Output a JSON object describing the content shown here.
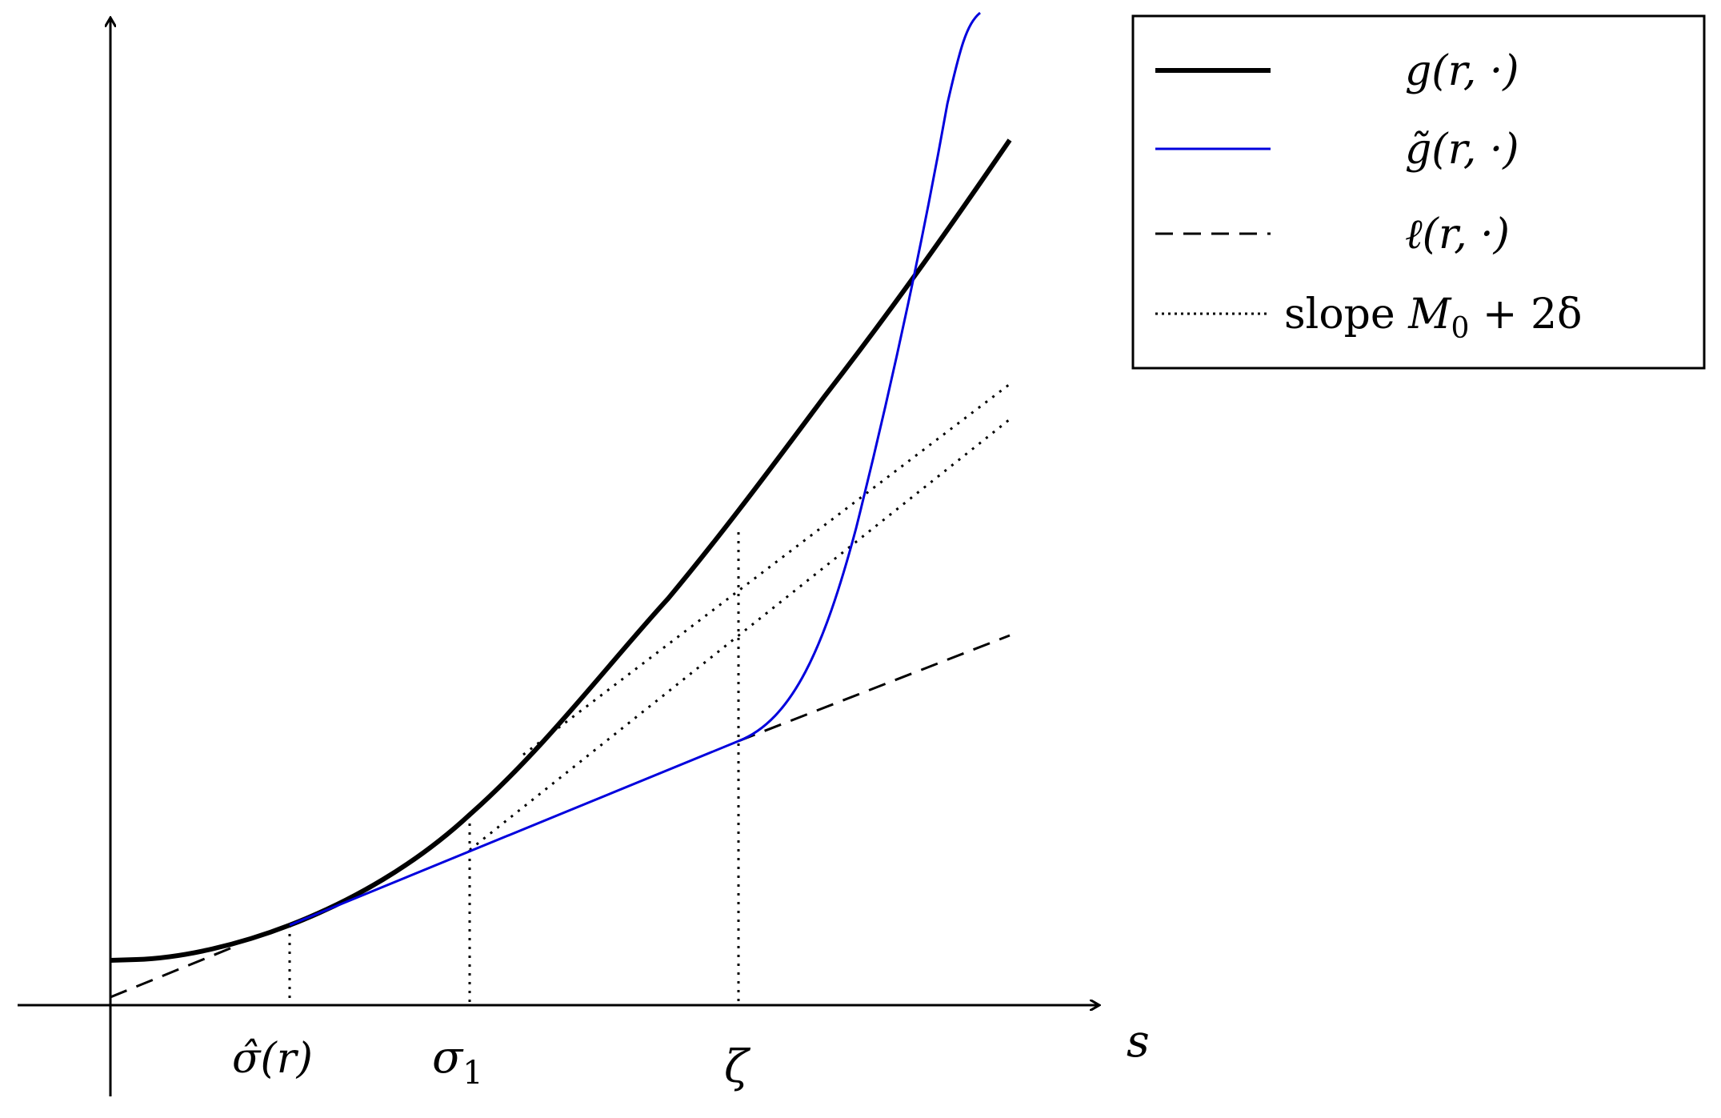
{
  "axes": {
    "x_label": "s",
    "ticks": {
      "sigma_hat": "σ̂(r)",
      "sigma_one_base": "σ",
      "sigma_one_sub": "1",
      "zeta": "ζ"
    }
  },
  "legend": {
    "g_label": "g(r, ·)",
    "g_tilde_label": "g̃(r, ·)",
    "ell_label": "ℓ(r, ·)",
    "slope_prefix": "slope ",
    "slope_m": "M",
    "slope_sub": "0",
    "slope_suffix": " + 2δ"
  },
  "colors": {
    "g": "#000000",
    "g_tilde": "#0000dd",
    "ell": "#000000",
    "slope": "#000000"
  }
}
